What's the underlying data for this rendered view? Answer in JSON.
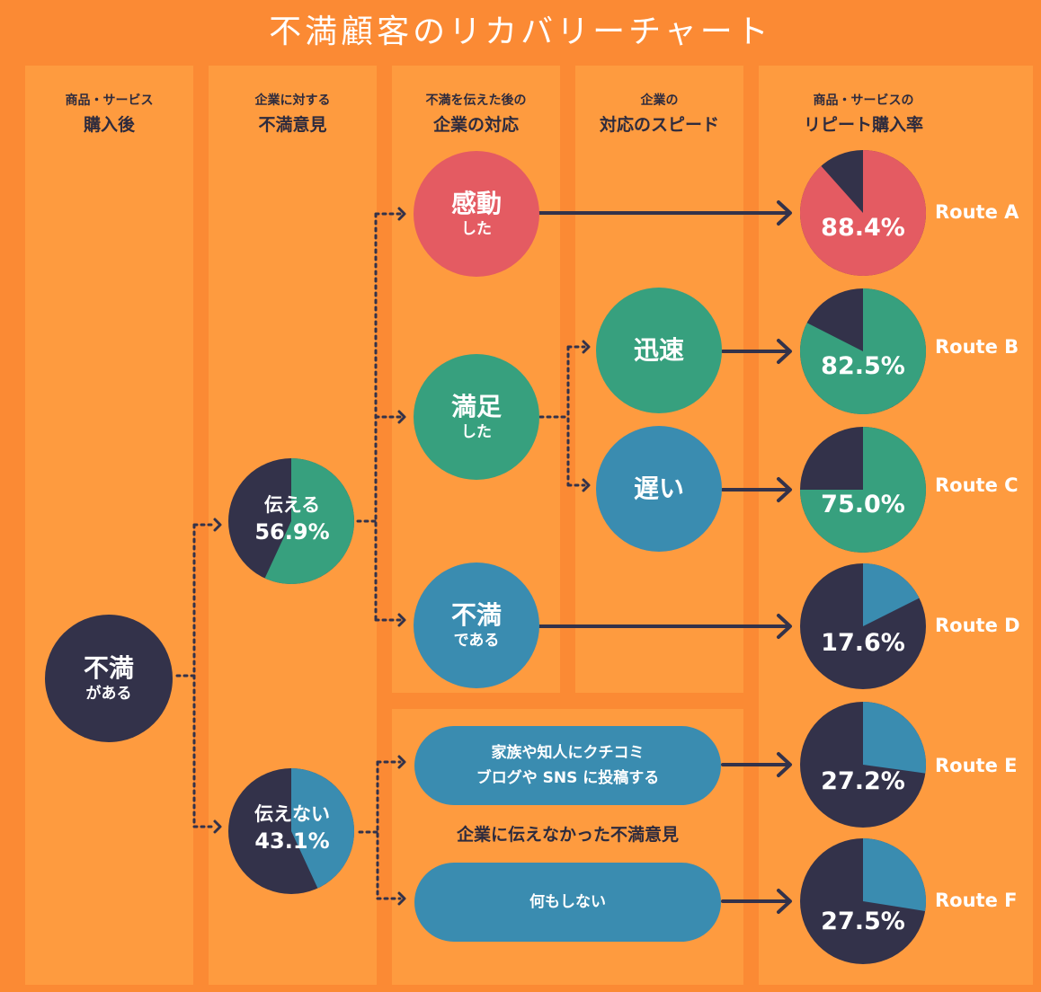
{
  "title": "不満顧客のリカバリーチャート",
  "columns": [
    {
      "line1": "商品・サービス",
      "line2": "購入後"
    },
    {
      "line1": "企業に対する",
      "line2": "不満意見"
    },
    {
      "line1": "不満を伝えた後の",
      "line2": "企業の対応"
    },
    {
      "line1": "企業の",
      "line2": "対応のスピード"
    },
    {
      "line1": "商品・サービスの",
      "line2": "リピート購入率"
    }
  ],
  "start_node": {
    "big": "不満",
    "small": "がある"
  },
  "opinion": {
    "tell": {
      "label": "伝える",
      "pct": "56.9%",
      "value": 56.9
    },
    "not_tell": {
      "label": "伝えない",
      "pct": "43.1%",
      "value": 43.1
    }
  },
  "response": {
    "moved": {
      "big": "感動",
      "small": "した"
    },
    "satisfied": {
      "big": "満足",
      "small": "した"
    },
    "dissatisfied": {
      "big": "不満",
      "small": "である"
    }
  },
  "speed": {
    "fast": "迅速",
    "slow": "遅い"
  },
  "untold": {
    "caption": "企業に伝えなかった不満意見",
    "spread_line1": "家族や知人にクチコミ",
    "spread_line2": "ブログや SNS に投稿する",
    "nothing": "何もしない"
  },
  "routes": [
    {
      "name": "Route A",
      "pct": "88.4%",
      "value": 88.4,
      "color": "#e45b62"
    },
    {
      "name": "Route B",
      "pct": "82.5%",
      "value": 82.5,
      "color": "#37a07e"
    },
    {
      "name": "Route C",
      "pct": "75.0%",
      "value": 75.0,
      "color": "#37a07e"
    },
    {
      "name": "Route D",
      "pct": "17.6%",
      "value": 17.6,
      "color": "#3a8cb0"
    },
    {
      "name": "Route E",
      "pct": "27.2%",
      "value": 27.2,
      "color": "#3a8cb0"
    },
    {
      "name": "Route F",
      "pct": "27.5%",
      "value": 27.5,
      "color": "#3a8cb0"
    }
  ],
  "colors": {
    "background": "#fb8a34",
    "panel": "#fe9b3f",
    "dark": "#33324a",
    "red": "#e45b62",
    "green": "#37a07e",
    "blue": "#3a8cb0"
  }
}
